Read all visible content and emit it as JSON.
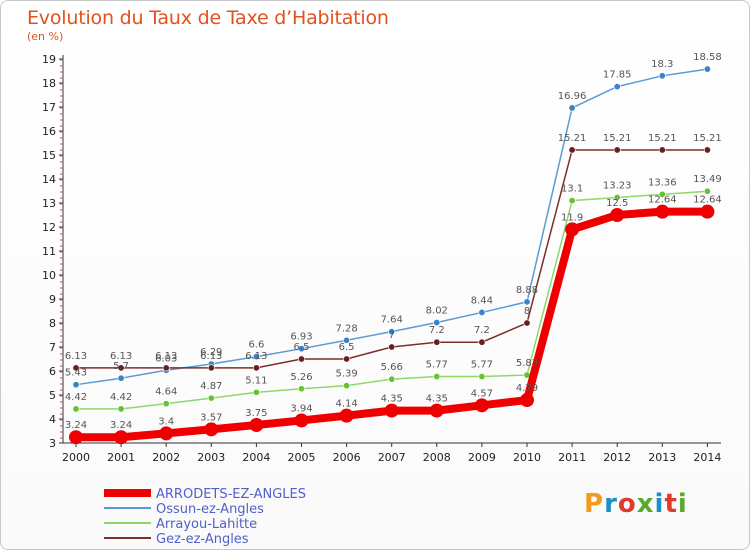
{
  "header": {
    "title": "Evolution du Taux de Taxe d’Habitation",
    "unit": "(en %)"
  },
  "logo": {
    "text": "Proxiti",
    "colors": [
      "#f29a1c",
      "#1a8fc8",
      "#e03a2a",
      "#5aaa2a",
      "#1a8fc8",
      "#e03a2a",
      "#5aaa2a"
    ]
  },
  "chart_data": {
    "type": "line",
    "x": [
      "2000",
      "2001",
      "2002",
      "2003",
      "2004",
      "2005",
      "2006",
      "2007",
      "2008",
      "2009",
      "2010",
      "2011",
      "2012",
      "2013",
      "2014"
    ],
    "ylim": [
      3,
      19
    ],
    "yticks": [
      3,
      4,
      5,
      6,
      7,
      8,
      9,
      10,
      11,
      12,
      13,
      14,
      15,
      16,
      17,
      18,
      19
    ],
    "grid": false,
    "legend_position": "bottom-left",
    "series": [
      {
        "name": "ARRODETS-EZ-ANGLES",
        "color": "#ee0000",
        "emphasis": true,
        "values": [
          3.24,
          3.24,
          3.4,
          3.57,
          3.75,
          3.94,
          4.14,
          4.35,
          4.35,
          4.57,
          4.79,
          11.9,
          12.5,
          12.64,
          12.64
        ],
        "labels": [
          "3.24",
          "3.24",
          "3.4",
          "3.57",
          "3.75",
          "3.94",
          "4.14",
          "4.35",
          "4.35",
          "4.57",
          "4.79",
          "11.9",
          "12.5",
          "12.64",
          "12.64"
        ]
      },
      {
        "name": "Ossun-ez-Angles",
        "color": "#5b9bd5",
        "marker": "#3a83c8",
        "values": [
          5.43,
          5.7,
          6.03,
          6.29,
          6.6,
          6.93,
          7.28,
          7.64,
          8.02,
          8.44,
          8.88,
          16.96,
          17.85,
          18.3,
          18.58
        ],
        "labels": [
          "5.43",
          "5.7",
          "6.03",
          "6.29",
          "6.6",
          "6.93",
          "7.28",
          "7.64",
          "8.02",
          "8.44",
          "8.88",
          "16.96",
          "17.85",
          "18.3",
          "18.58"
        ]
      },
      {
        "name": "Arrayou-Lahitte",
        "color": "#8ed86a",
        "marker": "#66c233",
        "values": [
          4.42,
          4.42,
          4.64,
          4.87,
          5.11,
          5.26,
          5.39,
          5.66,
          5.77,
          5.77,
          5.83,
          13.1,
          13.23,
          13.36,
          13.49
        ],
        "labels": [
          "4.42",
          "4.42",
          "4.64",
          "4.87",
          "5.11",
          "5.26",
          "5.39",
          "5.66",
          "5.77",
          "5.77",
          "5.83",
          "13.1",
          "13.23",
          "13.36",
          "13.49"
        ]
      },
      {
        "name": "Gez-ez-Angles",
        "color": "#7a2e2e",
        "marker": "#6a1f1f",
        "values": [
          6.13,
          6.13,
          6.13,
          6.13,
          6.13,
          6.5,
          6.5,
          7,
          7.2,
          7.2,
          8,
          15.21,
          15.21,
          15.21,
          15.21
        ],
        "labels": [
          "6.13",
          "6.13",
          "6.13",
          "6.13",
          "6.13",
          "6.5",
          "6.5",
          "7",
          "7.2",
          "7.2",
          "8",
          "15.21",
          "15.21",
          "15.21",
          "15.21"
        ]
      }
    ]
  }
}
